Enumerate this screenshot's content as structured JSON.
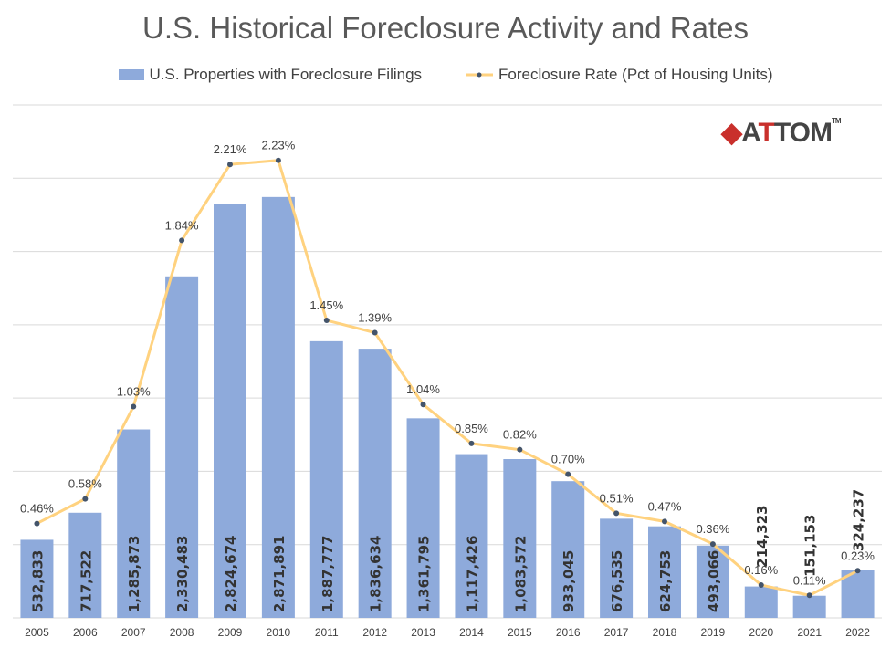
{
  "chart_data": {
    "type": "bar+line",
    "title": "U.S. Historical Foreclosure Activity and Rates",
    "categories": [
      "2005",
      "2006",
      "2007",
      "2008",
      "2009",
      "2010",
      "2011",
      "2012",
      "2013",
      "2014",
      "2015",
      "2016",
      "2017",
      "2018",
      "2019",
      "2020",
      "2021",
      "2022"
    ],
    "series": [
      {
        "name": "U.S. Properties with Foreclosure Filings",
        "type": "bar",
        "color": "#8eaadb",
        "values": [
          532833,
          717522,
          1285873,
          2330483,
          2824674,
          2871891,
          1887777,
          1836634,
          1361795,
          1117426,
          1083572,
          933045,
          676535,
          624753,
          493066,
          214323,
          151153,
          324237
        ],
        "labels": [
          "532,833",
          "717,522",
          "1,285,873",
          "2,330,483",
          "2,824,674",
          "2,871,891",
          "1,887,777",
          "1,836,634",
          "1,361,795",
          "1,117,426",
          "1,083,572",
          "933,045",
          "676,535",
          "624,753",
          "493,066",
          "214,323",
          "151,153",
          "324,237"
        ]
      },
      {
        "name": "Foreclosure Rate (Pct of Housing Units)",
        "type": "line",
        "color": "#ffd27f",
        "marker_color": "#44546a",
        "values": [
          0.46,
          0.58,
          1.03,
          1.84,
          2.21,
          2.23,
          1.45,
          1.39,
          1.04,
          0.85,
          0.82,
          0.7,
          0.51,
          0.47,
          0.36,
          0.16,
          0.11,
          0.23
        ],
        "labels": [
          "0.46%",
          "0.58%",
          "1.03%",
          "1.84%",
          "2.21%",
          "2.23%",
          "1.45%",
          "1.39%",
          "1.04%",
          "0.85%",
          "0.82%",
          "0.70%",
          "0.51%",
          "0.47%",
          "0.36%",
          "0.16%",
          "0.11%",
          "0.23%"
        ]
      }
    ],
    "ylim": [
      0,
      3500000
    ],
    "y2lim": [
      0,
      2.5
    ],
    "grid": true,
    "legend_position": "top"
  },
  "logo": {
    "text": "ATTOM",
    "tm": "™"
  }
}
